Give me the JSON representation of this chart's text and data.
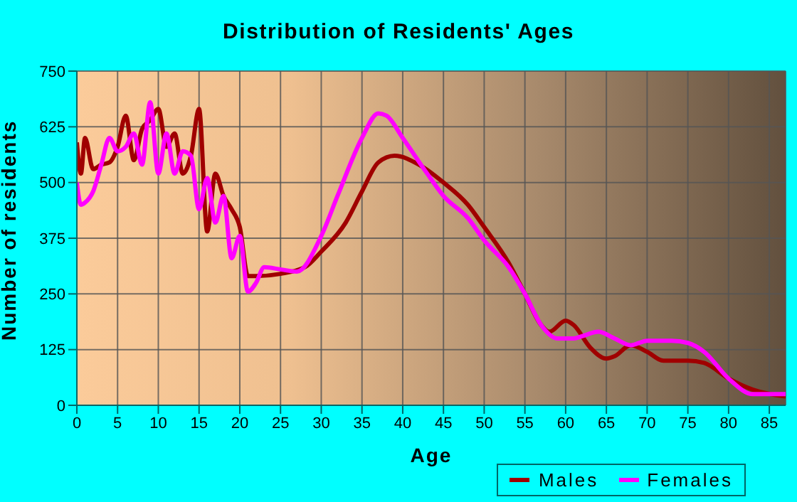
{
  "chart_data": {
    "type": "line",
    "title": "Distribution of Residents' Ages",
    "xlabel": "Age",
    "ylabel": "Number of residents",
    "xlim": [
      0,
      87
    ],
    "xticks": [
      0,
      5,
      10,
      15,
      20,
      25,
      30,
      35,
      40,
      45,
      50,
      55,
      60,
      65,
      70,
      75,
      80,
      85
    ],
    "ylim": [
      0,
      750
    ],
    "yticks": [
      0,
      125,
      250,
      375,
      500,
      625,
      750
    ],
    "grid": true,
    "legend": "bottom right",
    "marker": "none",
    "line_style": "solid",
    "series": [
      {
        "name": "Males",
        "color": "#a00000",
        "x": [
          0,
          0.5,
          1,
          2,
          3,
          4,
          5,
          6,
          7,
          8,
          9,
          10,
          11,
          12,
          13,
          14,
          15,
          16,
          17,
          18,
          19,
          20,
          21,
          22,
          25,
          28,
          30,
          33,
          35,
          37,
          39,
          42,
          45,
          48,
          50,
          53,
          55,
          57,
          58,
          60,
          61,
          63,
          65,
          66,
          68,
          70,
          72,
          75,
          77,
          80,
          83,
          87
        ],
        "values": [
          590,
          520,
          600,
          530,
          540,
          545,
          580,
          650,
          550,
          620,
          640,
          665,
          580,
          610,
          520,
          560,
          665,
          390,
          520,
          470,
          440,
          400,
          290,
          290,
          295,
          310,
          345,
          410,
          480,
          545,
          560,
          540,
          500,
          450,
          400,
          320,
          250,
          180,
          165,
          190,
          180,
          130,
          105,
          110,
          135,
          120,
          100,
          100,
          95,
          60,
          35,
          20
        ]
      },
      {
        "name": "Females",
        "color": "#ff00ff",
        "x": [
          0,
          0.5,
          1,
          2,
          3,
          4,
          5,
          6,
          7,
          8,
          9,
          10,
          11,
          12,
          13,
          14,
          15,
          16,
          17,
          18,
          19,
          20,
          21,
          22,
          23,
          25,
          27,
          30,
          32,
          35,
          37,
          38,
          40,
          43,
          45,
          48,
          50,
          53,
          55,
          57,
          59,
          61,
          62,
          64,
          66,
          68,
          70,
          73,
          75,
          77,
          80,
          83,
          87
        ],
        "values": [
          500,
          450,
          455,
          480,
          540,
          600,
          570,
          580,
          610,
          540,
          680,
          520,
          610,
          520,
          570,
          560,
          440,
          510,
          410,
          470,
          330,
          380,
          255,
          275,
          310,
          305,
          300,
          380,
          470,
          600,
          655,
          650,
          600,
          520,
          470,
          420,
          370,
          310,
          250,
          180,
          150,
          150,
          155,
          165,
          150,
          135,
          145,
          145,
          140,
          120,
          60,
          25,
          25
        ]
      }
    ]
  }
}
